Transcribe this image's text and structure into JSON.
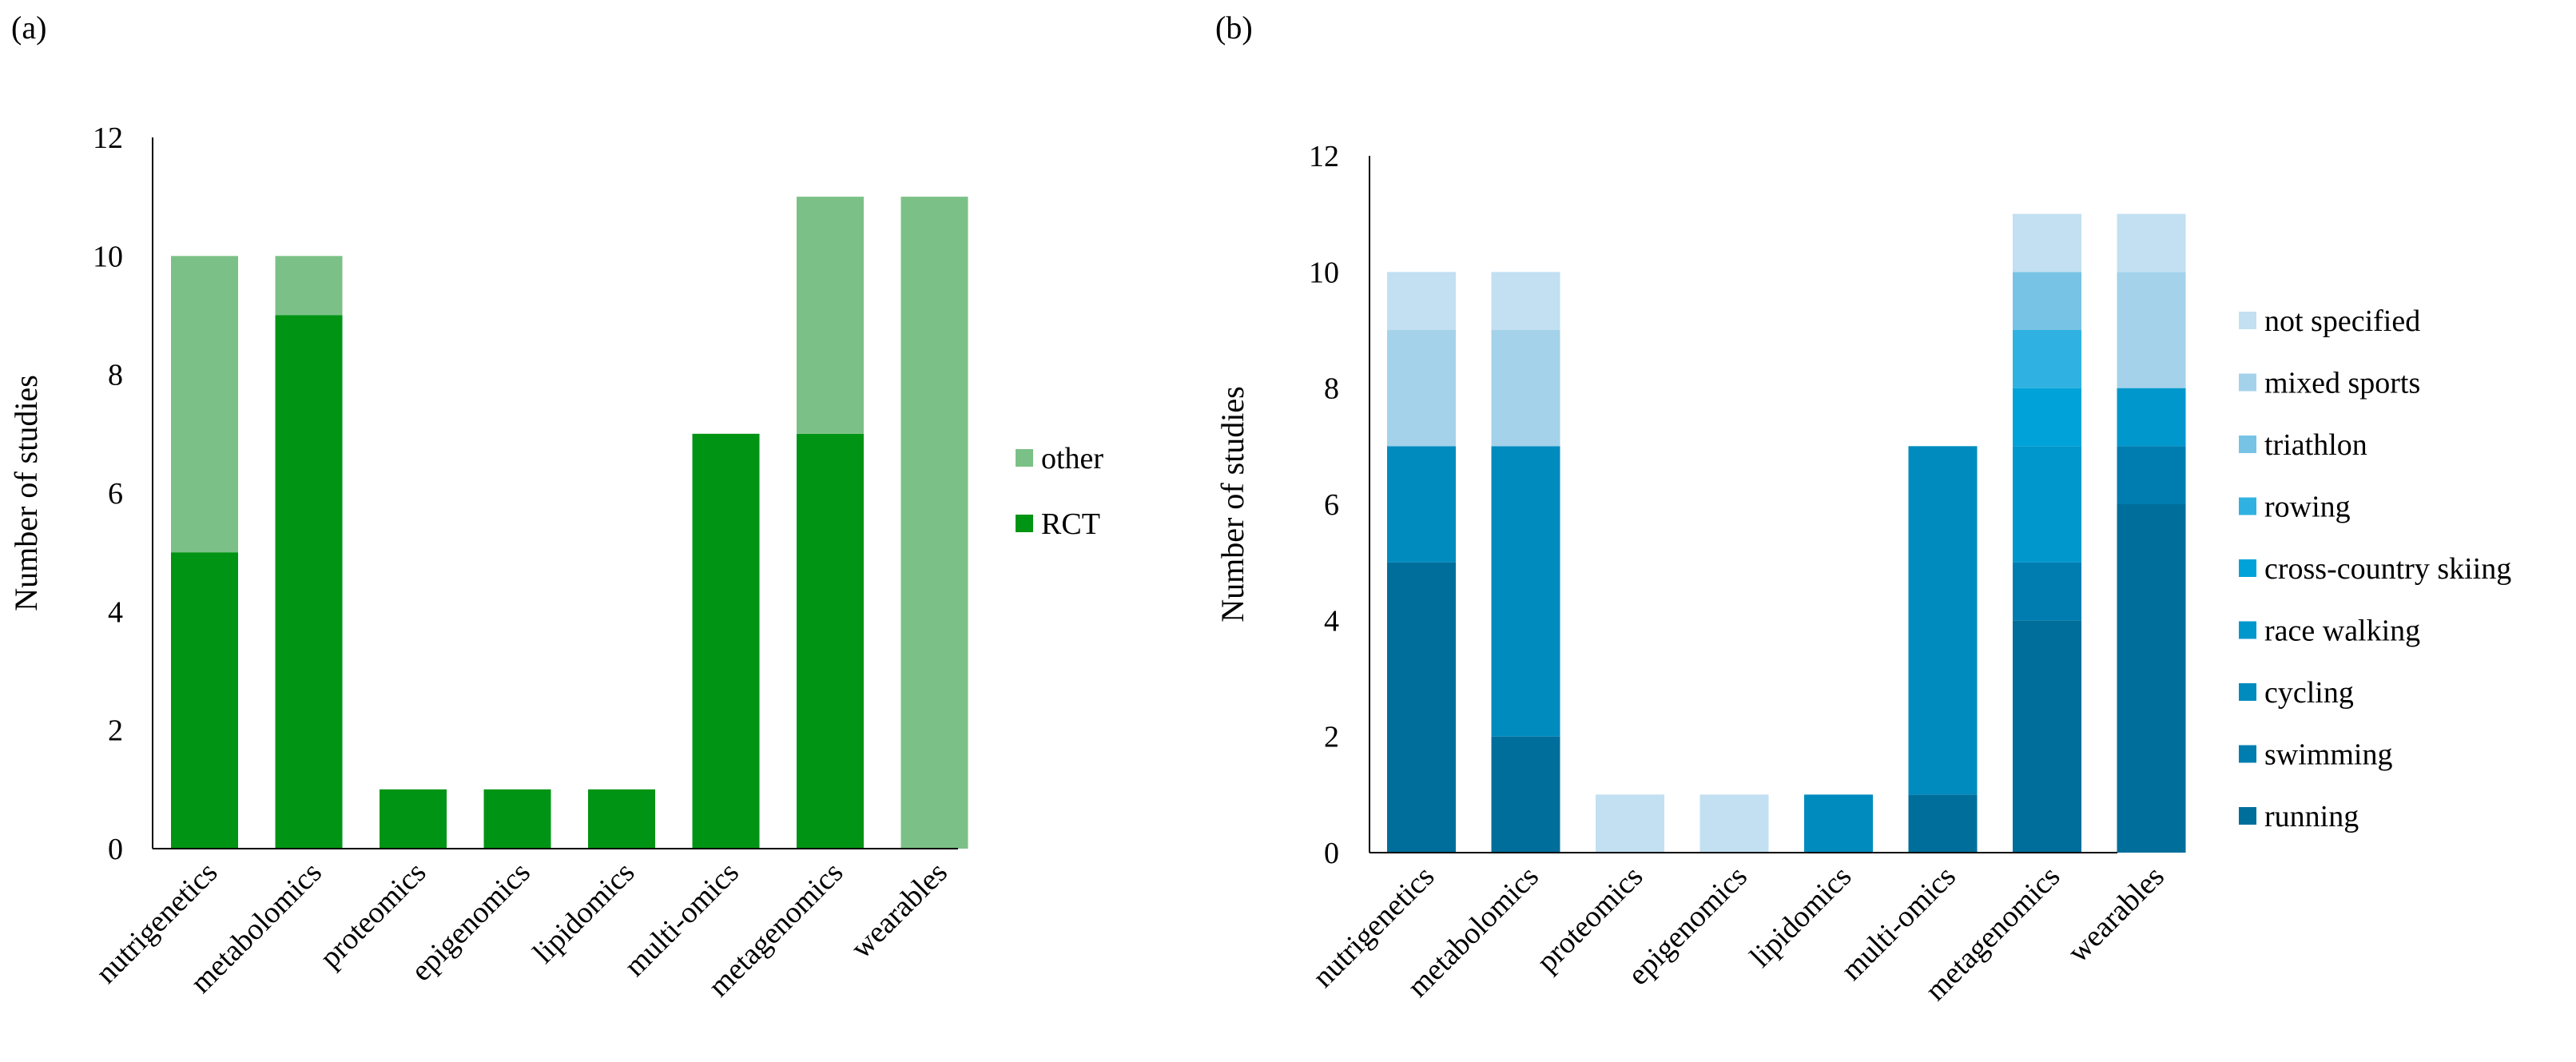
{
  "chart_data": [
    {
      "panel": "a",
      "panel_label": "(a)",
      "type": "bar",
      "stacked": true,
      "title": "",
      "xlabel": "",
      "ylabel": "Number of studies",
      "ylim": [
        0,
        12
      ],
      "yticks": [
        0,
        2,
        4,
        6,
        8,
        10,
        12
      ],
      "grid": false,
      "legend_position": "right",
      "categories": [
        "nutrigenetics",
        "metabolomics",
        "proteomics",
        "epigenomics",
        "lipidomics",
        "multi-omics",
        "metagenomics",
        "wearables"
      ],
      "series": [
        {
          "name": "RCT",
          "color": "#009414",
          "values": [
            5,
            9,
            1,
            1,
            1,
            7,
            7,
            0
          ]
        },
        {
          "name": "other",
          "color": "#7bc187",
          "values": [
            5,
            1,
            0,
            0,
            0,
            0,
            4,
            11
          ]
        }
      ],
      "legend_order": [
        "other",
        "RCT"
      ]
    },
    {
      "panel": "b",
      "panel_label": "(b)",
      "type": "bar",
      "stacked": true,
      "title": "",
      "xlabel": "",
      "ylabel": "Number of studies",
      "ylim": [
        0,
        12
      ],
      "yticks": [
        0,
        2,
        4,
        6,
        8,
        10,
        12
      ],
      "grid": false,
      "legend_position": "right",
      "categories": [
        "nutrigenetics",
        "metabolomics",
        "proteomics",
        "epigenomics",
        "lipidomics",
        "multi-omics",
        "metagenomics",
        "wearables"
      ],
      "series": [
        {
          "name": "running",
          "color": "#006e9b",
          "values": [
            5,
            2,
            0,
            0,
            0,
            1,
            4,
            6
          ]
        },
        {
          "name": "swimming",
          "color": "#007db0",
          "values": [
            0,
            0,
            0,
            0,
            0,
            0,
            1,
            1
          ]
        },
        {
          "name": "cycling",
          "color": "#008bbf",
          "values": [
            2,
            5,
            0,
            0,
            1,
            6,
            0,
            0
          ]
        },
        {
          "name": "race walking",
          "color": "#0097cd",
          "values": [
            0,
            0,
            0,
            0,
            0,
            0,
            2,
            1
          ]
        },
        {
          "name": "cross-country skiing",
          "color": "#00a3d9",
          "values": [
            0,
            0,
            0,
            0,
            0,
            0,
            1,
            0
          ]
        },
        {
          "name": "rowing",
          "color": "#2fb2e2",
          "values": [
            0,
            0,
            0,
            0,
            0,
            0,
            1,
            0
          ]
        },
        {
          "name": "triathlon",
          "color": "#77c3e6",
          "values": [
            0,
            0,
            0,
            0,
            0,
            0,
            1,
            0
          ]
        },
        {
          "name": "mixed sports",
          "color": "#a4d2ea",
          "values": [
            2,
            2,
            0,
            0,
            0,
            0,
            0,
            2
          ]
        },
        {
          "name": "not specified",
          "color": "#c2e0f1",
          "values": [
            1,
            1,
            1,
            1,
            0,
            0,
            1,
            1
          ]
        }
      ],
      "legend_order": [
        "not specified",
        "mixed sports",
        "triathlon",
        "rowing",
        "cross-country skiing",
        "race walking",
        "cycling",
        "swimming",
        "running"
      ]
    }
  ]
}
